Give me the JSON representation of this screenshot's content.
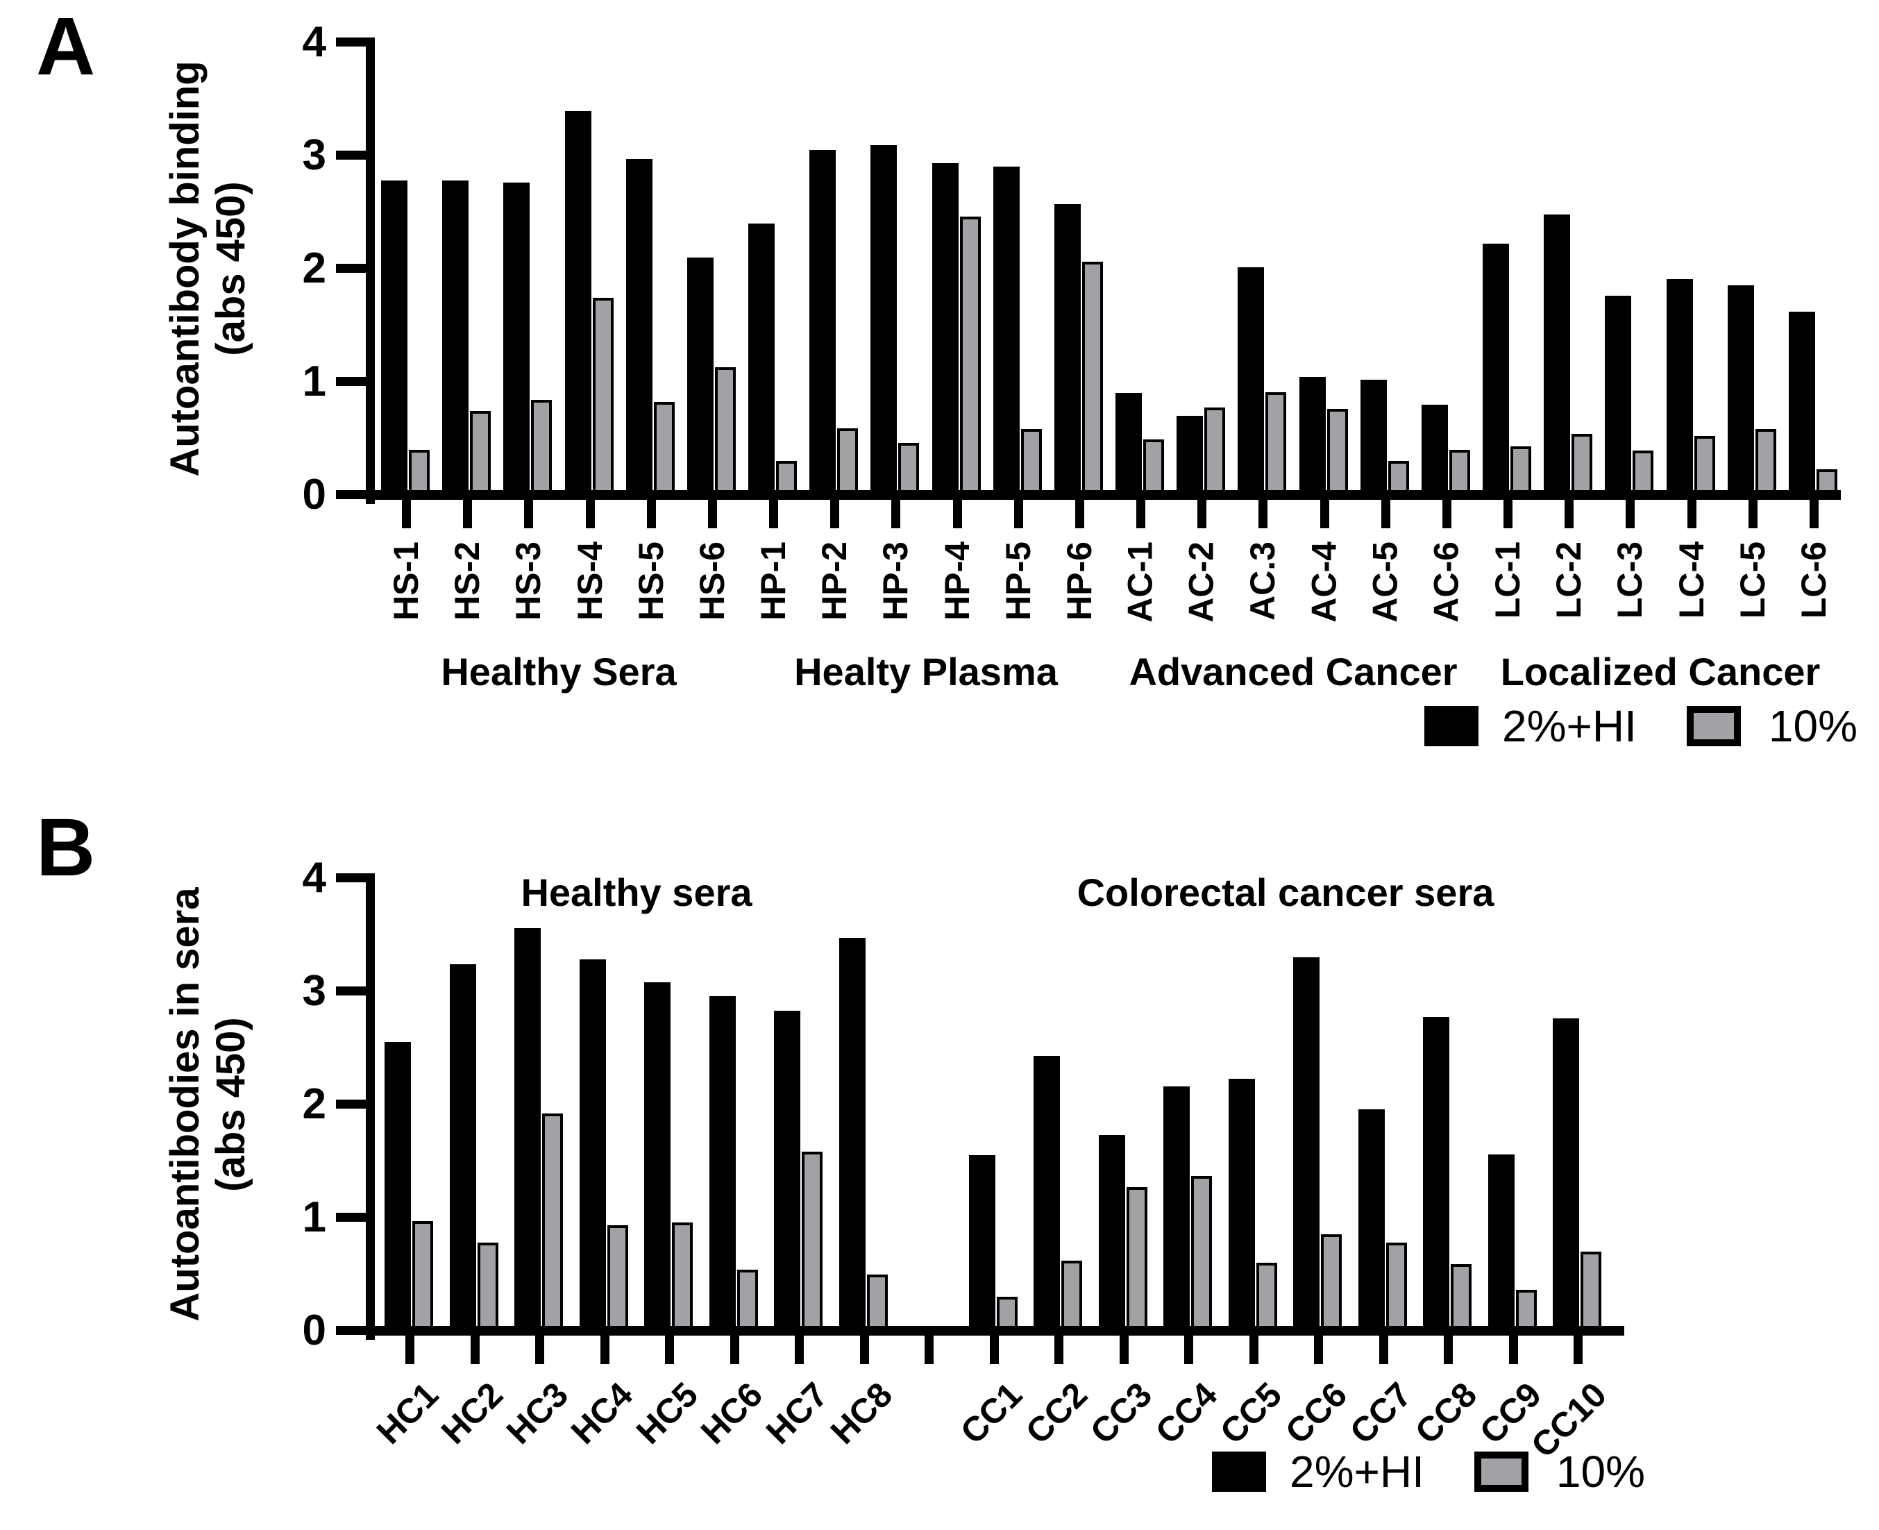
{
  "chart_data": [
    {
      "type": "bar",
      "panel": "A",
      "ylabel_lines": [
        "Autoantibody binding",
        "(abs 450)"
      ],
      "ylim": [
        0,
        4
      ],
      "yticks": [
        "0",
        "1",
        "2",
        "3",
        "4"
      ],
      "grid": false,
      "legend_position": "bottom-right",
      "categories": [
        "HS-1",
        "HS-2",
        "HS-3",
        "HS-4",
        "HS-5",
        "HS-6",
        "HP-1",
        "HP-2",
        "HP-3",
        "HP-4",
        "HP-5",
        "HP-6",
        "AC-1",
        "AC-2",
        "AC.3",
        "AC-4",
        "AC-5",
        "AC-6",
        "LC-1",
        "LC-2",
        "LC-3",
        "LC-4",
        "LC-5",
        "LC-6"
      ],
      "groups": [
        {
          "label": "Healthy Sera",
          "start": 0,
          "end": 5
        },
        {
          "label": "Healty Plasma",
          "start": 6,
          "end": 11
        },
        {
          "label": "Advanced Cancer",
          "start": 12,
          "end": 17
        },
        {
          "label": "Localized Cancer",
          "start": 18,
          "end": 23
        }
      ],
      "series": [
        {
          "name": "2%+HI",
          "color": "#000000",
          "values": [
            2.78,
            2.78,
            2.76,
            3.39,
            2.97,
            2.1,
            2.4,
            3.05,
            3.09,
            2.93,
            2.9,
            2.57,
            0.9,
            0.7,
            2.01,
            1.04,
            1.02,
            0.8,
            2.22,
            2.48,
            1.76,
            1.91,
            1.85,
            1.62
          ]
        },
        {
          "name": "10%",
          "color": "#A1A1A6",
          "values": [
            0.4,
            0.74,
            0.84,
            1.74,
            0.82,
            1.13,
            0.3,
            0.59,
            0.46,
            2.46,
            0.58,
            2.06,
            0.49,
            0.77,
            0.91,
            0.76,
            0.3,
            0.4,
            0.43,
            0.54,
            0.39,
            0.52,
            0.58,
            0.23
          ]
        }
      ]
    },
    {
      "type": "bar",
      "panel": "B",
      "ylabel_lines": [
        "Autoantibodies in sera",
        "(abs 450)"
      ],
      "ylim": [
        0,
        4
      ],
      "yticks": [
        "0",
        "1",
        "2",
        "3",
        "4"
      ],
      "grid": false,
      "legend_position": "bottom-right",
      "categories": [
        "HC1",
        "HC2",
        "HC3",
        "HC4",
        "HC5",
        "HC6",
        "HC7",
        "HC8",
        "CC1",
        "CC2",
        "CC3",
        "CC4",
        "CC5",
        "CC6",
        "CC7",
        "CC8",
        "CC9",
        "CC10"
      ],
      "groups": [
        {
          "label": "Healthy sera",
          "start": 0,
          "end": 7
        },
        {
          "label": "Colorectal cancer sera",
          "start": 8,
          "end": 17
        }
      ],
      "series": [
        {
          "name": "2%+HI",
          "color": "#000000",
          "values": [
            2.55,
            3.24,
            3.56,
            3.28,
            3.08,
            2.96,
            2.83,
            3.47,
            1.55,
            2.43,
            1.73,
            2.16,
            2.23,
            3.3,
            1.96,
            2.77,
            1.56,
            2.76
          ]
        },
        {
          "name": "10%",
          "color": "#A1A1A6",
          "values": [
            0.97,
            0.78,
            1.92,
            0.93,
            0.96,
            0.54,
            1.58,
            0.5,
            0.3,
            0.62,
            1.27,
            1.37,
            0.6,
            0.85,
            0.78,
            0.59,
            0.36,
            0.7
          ]
        }
      ]
    }
  ]
}
